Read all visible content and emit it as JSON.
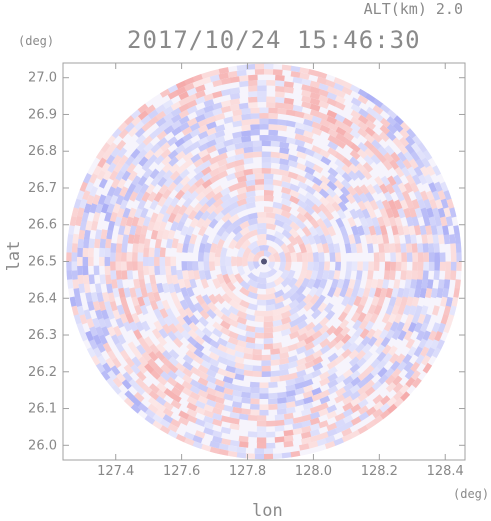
{
  "header": {
    "altitude_label": "ALT(km)",
    "altitude_value": "2.0",
    "timestamp": "2017/10/24 15:46:30"
  },
  "chart_data": {
    "type": "heatmap",
    "title": "2017/10/24 15:46:30",
    "subtitle": "ALT(km) 2.0",
    "xlabel": "lon",
    "ylabel": "lat",
    "x_unit": "(deg)",
    "y_unit": "(deg)",
    "xlim": [
      127.24,
      128.46
    ],
    "ylim": [
      25.96,
      27.04
    ],
    "x_ticks": [
      127.4,
      127.6,
      127.8,
      128.0,
      128.2,
      128.4
    ],
    "x_tick_labels": [
      "127.4",
      "127.6",
      "127.8",
      "128.0",
      "128.2",
      "128.4"
    ],
    "y_ticks": [
      26.0,
      26.1,
      26.2,
      26.3,
      26.4,
      26.5,
      26.6,
      26.7,
      26.8,
      26.9,
      27.0
    ],
    "y_tick_labels": [
      "26.0",
      "26.1",
      "26.2",
      "26.3",
      "26.4",
      "26.5",
      "26.6",
      "26.7",
      "26.8",
      "26.9",
      "27.0"
    ],
    "radar_center": {
      "lon": 127.85,
      "lat": 26.5
    },
    "coverage_radius_deg_lon": 0.6,
    "colors": {
      "positive": "#f4a0a0",
      "negative": "#a0a4f4",
      "neutral": "#ffffff",
      "frame": "#a0a0a0"
    },
    "grid": false,
    "legend": "none"
  }
}
